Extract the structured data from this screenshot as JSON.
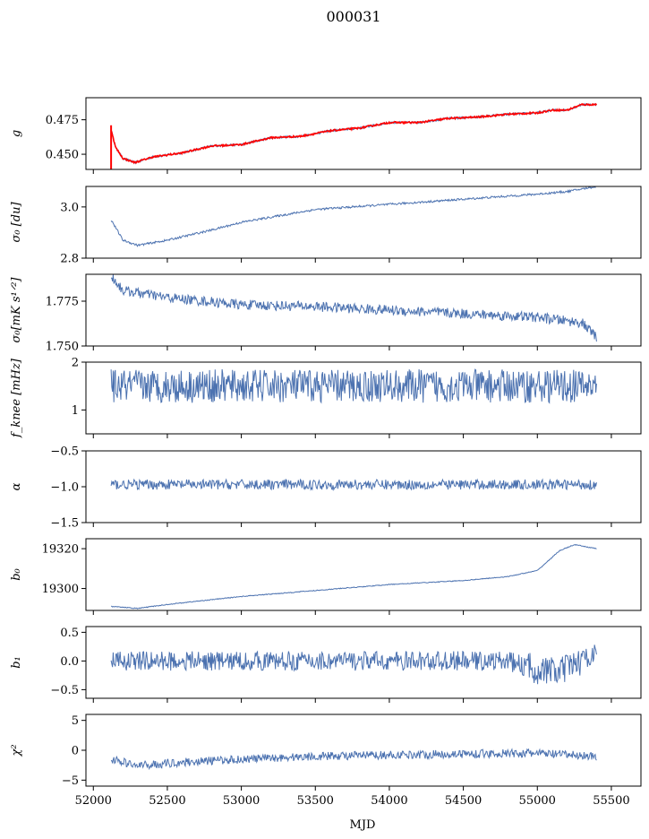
{
  "title": "000031",
  "xlabel": "MJD",
  "x_ticks": [
    52000,
    52500,
    53000,
    53500,
    54000,
    54500,
    55000,
    55500
  ],
  "x_range": [
    51950,
    55700
  ],
  "data_x_range": [
    52120,
    55400
  ],
  "colors": {
    "series": "#4c72b0",
    "overlay": "#ff0000"
  },
  "chart_data": [
    {
      "type": "line",
      "ylabel": "g",
      "ylim": [
        0.439,
        0.491
      ],
      "y_ticks": [
        "0.450",
        "0.475"
      ],
      "y_tick_values": [
        0.45,
        0.475
      ],
      "series": [
        {
          "color": "#4c72b0",
          "trend_x": [
            52120,
            52150,
            52200,
            52280,
            52400,
            52600,
            52800,
            53000,
            53200,
            53400,
            53600,
            53800,
            54000,
            54200,
            54400,
            54600,
            54800,
            55000,
            55100,
            55200,
            55300,
            55400
          ],
          "trend_y": [
            0.468,
            0.455,
            0.447,
            0.444,
            0.448,
            0.451,
            0.456,
            0.457,
            0.462,
            0.463,
            0.467,
            0.469,
            0.473,
            0.473,
            0.476,
            0.477,
            0.479,
            0.48,
            0.482,
            0.482,
            0.486,
            0.486
          ]
        },
        {
          "color": "#ff0000",
          "overlay_same_trend": true
        }
      ]
    },
    {
      "type": "line",
      "ylabel": "σ₀ [du]",
      "ylim": [
        2.8,
        3.08
      ],
      "y_ticks": [
        "2.8",
        "3.0"
      ],
      "y_tick_values": [
        2.8,
        3.0
      ],
      "series": [
        {
          "color": "#4c72b0",
          "trend_x": [
            52120,
            52200,
            52300,
            52500,
            52800,
            53000,
            53500,
            54000,
            54500,
            55000,
            55200,
            55400
          ],
          "trend_y": [
            2.95,
            2.87,
            2.85,
            2.87,
            2.91,
            2.94,
            2.99,
            3.01,
            3.03,
            3.05,
            3.06,
            3.08
          ]
        }
      ]
    },
    {
      "type": "line",
      "ylabel": "σ₀[mK s¹ᐟ²]",
      "ylim": [
        1.75,
        1.79
      ],
      "y_ticks": [
        "1.750",
        "1.775"
      ],
      "y_tick_values": [
        1.75,
        1.775
      ],
      "series": [
        {
          "color": "#4c72b0",
          "trend_x": [
            52120,
            52200,
            52500,
            53000,
            53500,
            54000,
            54500,
            55000,
            55300,
            55400
          ],
          "trend_y": [
            1.789,
            1.781,
            1.777,
            1.773,
            1.772,
            1.77,
            1.768,
            1.766,
            1.763,
            1.755
          ]
        }
      ]
    },
    {
      "type": "line",
      "ylabel": "f_knee [mHz]",
      "ylim": [
        0.5,
        2.0
      ],
      "y_ticks": [
        "1",
        "2"
      ],
      "y_tick_values": [
        1,
        2
      ],
      "series": [
        {
          "color": "#4c72b0",
          "trend_x": [
            52120,
            55400
          ],
          "trend_y": [
            1.5,
            1.5
          ]
        }
      ]
    },
    {
      "type": "line",
      "ylabel": "α",
      "ylim": [
        -1.5,
        -0.5
      ],
      "y_ticks": [
        "−1.5",
        "−1.0",
        "−0.5"
      ],
      "y_tick_values": [
        -1.5,
        -1.0,
        -0.5
      ],
      "series": [
        {
          "color": "#4c72b0",
          "trend_x": [
            52120,
            55400
          ],
          "trend_y": [
            -0.97,
            -0.97
          ]
        }
      ]
    },
    {
      "type": "line",
      "ylabel": "b₀",
      "ylim": [
        19289,
        19325
      ],
      "y_ticks": [
        "19300",
        "19320"
      ],
      "y_tick_values": [
        19300,
        19320
      ],
      "series": [
        {
          "color": "#4c72b0",
          "trend_x": [
            52120,
            52300,
            52500,
            53000,
            53500,
            54000,
            54500,
            54800,
            55000,
            55150,
            55250,
            55400
          ],
          "trend_y": [
            19291,
            19290,
            19292,
            19296,
            19299,
            19302,
            19304,
            19306,
            19309,
            19319,
            19322,
            19320
          ]
        }
      ]
    },
    {
      "type": "line",
      "ylabel": "b₁",
      "ylim": [
        -0.65,
        0.6
      ],
      "y_ticks": [
        "−0.5",
        "0.0",
        "0.5"
      ],
      "y_tick_values": [
        -0.5,
        0.0,
        0.5
      ],
      "series": [
        {
          "color": "#4c72b0",
          "trend_x": [
            52120,
            54800,
            55000,
            55150,
            55400
          ],
          "trend_y": [
            0.0,
            0.0,
            -0.15,
            -0.2,
            0.15
          ]
        }
      ]
    },
    {
      "type": "line",
      "ylabel": "χ²",
      "ylim": [
        -6,
        6
      ],
      "y_ticks": [
        "−5",
        "0",
        "5"
      ],
      "y_tick_values": [
        -5,
        0,
        5
      ],
      "series": [
        {
          "color": "#4c72b0",
          "trend_x": [
            52120,
            52300,
            52600,
            53000,
            53500,
            54000,
            54500,
            55000,
            55400
          ],
          "trend_y": [
            -1.5,
            -2.6,
            -2.0,
            -1.5,
            -1.0,
            -0.8,
            -0.6,
            -0.5,
            -1.0
          ]
        }
      ]
    }
  ]
}
